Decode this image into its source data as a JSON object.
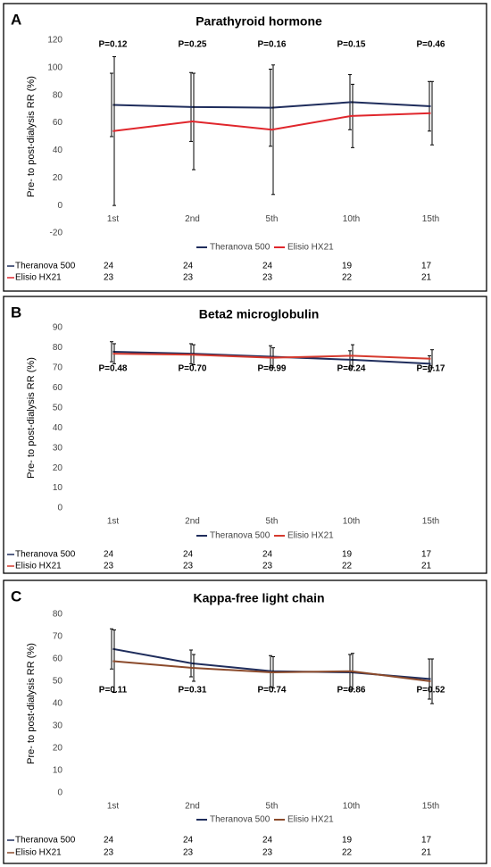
{
  "chart_data": [
    {
      "type": "line",
      "panel": "A",
      "title": "Parathyroid hormone",
      "y_label": "Pre- to post-dialysis RR (%)",
      "categories": [
        "1st",
        "2nd",
        "5th",
        "10th",
        "15th"
      ],
      "ylim": [
        -20,
        120
      ],
      "yticks": [
        -20,
        0,
        20,
        40,
        60,
        80,
        100,
        120
      ],
      "series": [
        {
          "name": "Theranova 500",
          "color": "#1f2d5c",
          "values": [
            73,
            71.5,
            71,
            75,
            72
          ],
          "errors": [
            23,
            25,
            28,
            20,
            18
          ]
        },
        {
          "name": "Elisio HX21",
          "color": "#e0262c",
          "values": [
            54,
            61,
            55,
            65,
            67
          ],
          "errors": [
            54,
            35,
            47,
            23,
            23
          ]
        }
      ],
      "annotations": [
        "P=0.12",
        "P=0.25",
        "P=0.16",
        "P=0.15",
        "P=0.46"
      ],
      "table": [
        {
          "name": "Theranova 500",
          "values": [
            24,
            24,
            24,
            19,
            17
          ]
        },
        {
          "name": "Elisio HX21",
          "values": [
            23,
            23,
            23,
            22,
            21
          ]
        }
      ]
    },
    {
      "type": "line",
      "panel": "B",
      "title": "Beta2 microglobulin",
      "y_label": "Pre- to post-dialysis RR (%)",
      "categories": [
        "1st",
        "2nd",
        "5th",
        "10th",
        "15th"
      ],
      "ylim": [
        0,
        90
      ],
      "yticks": [
        0,
        10,
        20,
        30,
        40,
        50,
        60,
        70,
        80,
        90
      ],
      "series": [
        {
          "name": "Theranova 500",
          "color": "#1f2d5c",
          "values": [
            78,
            77,
            75.5,
            74,
            72
          ],
          "errors": [
            5,
            5,
            5.5,
            4.5,
            4
          ]
        },
        {
          "name": "Elisio HX21",
          "color": "#d63a2e",
          "values": [
            77,
            76.5,
            75,
            76,
            74.5
          ],
          "errors": [
            5,
            5,
            5,
            5.5,
            4.5
          ]
        }
      ],
      "annotations": [
        "P=0.48",
        "P=0.70",
        "P=0.99",
        "P=0.24",
        "P=0.17"
      ],
      "table": [
        {
          "name": "Theranova 500",
          "values": [
            24,
            24,
            24,
            19,
            17
          ]
        },
        {
          "name": "Elisio HX21",
          "values": [
            23,
            23,
            23,
            22,
            21
          ]
        }
      ]
    },
    {
      "type": "line",
      "panel": "C",
      "title": "Kappa-free light chain",
      "y_label": "Pre- to post-dialysis RR (%)",
      "categories": [
        "1st",
        "2nd",
        "5th",
        "10th",
        "15th"
      ],
      "ylim": [
        0,
        80
      ],
      "yticks": [
        0,
        10,
        20,
        30,
        40,
        50,
        60,
        70,
        80
      ],
      "series": [
        {
          "name": "Theranova 500",
          "color": "#1f2d5c",
          "values": [
            64.5,
            58,
            54.5,
            54,
            51
          ],
          "errors": [
            9,
            6,
            7,
            8,
            9
          ]
        },
        {
          "name": "Elisio HX21",
          "color": "#8b4a2b",
          "values": [
            59,
            56,
            54,
            54.5,
            50
          ],
          "errors": [
            14,
            6,
            7,
            8,
            10
          ]
        }
      ],
      "annotations": [
        "P=0.11",
        "P=0.31",
        "P=0.74",
        "P=0.86",
        "P=0.52"
      ],
      "table": [
        {
          "name": "Theranova 500",
          "values": [
            24,
            24,
            24,
            19,
            17
          ]
        },
        {
          "name": "Elisio HX21",
          "values": [
            23,
            23,
            23,
            22,
            21
          ]
        }
      ]
    }
  ]
}
